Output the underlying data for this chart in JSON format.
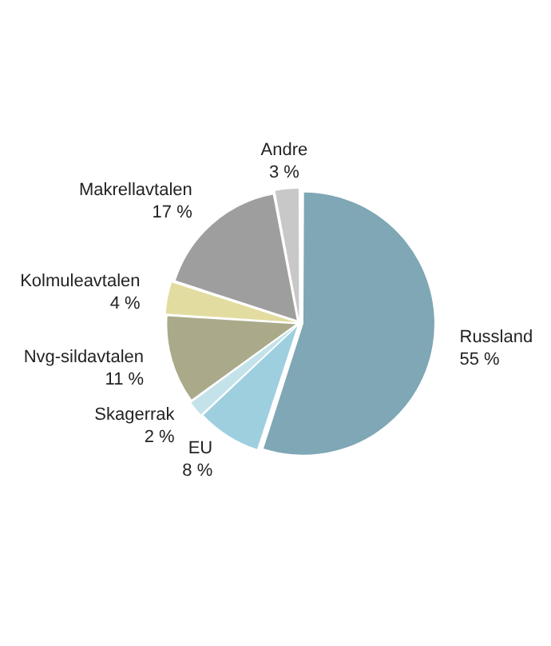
{
  "chart_data": {
    "type": "pie",
    "categories": [
      "Russland",
      "EU",
      "Skagerrak",
      "Nvg-sildavtalen",
      "Kolmuleavtalen",
      "Makrellavtalen",
      "Andre"
    ],
    "values": [
      55,
      8,
      2,
      11,
      4,
      17,
      3
    ],
    "value_labels": [
      "55 %",
      "8 %",
      "2 %",
      "11 %",
      "4 %",
      "17 %",
      "3 %"
    ],
    "colors": [
      "#7fa7b5",
      "#9ecfdf",
      "#c4e2ea",
      "#aaa98a",
      "#e3dca0",
      "#9e9e9e",
      "#c8c8c8"
    ],
    "legend": false
  }
}
